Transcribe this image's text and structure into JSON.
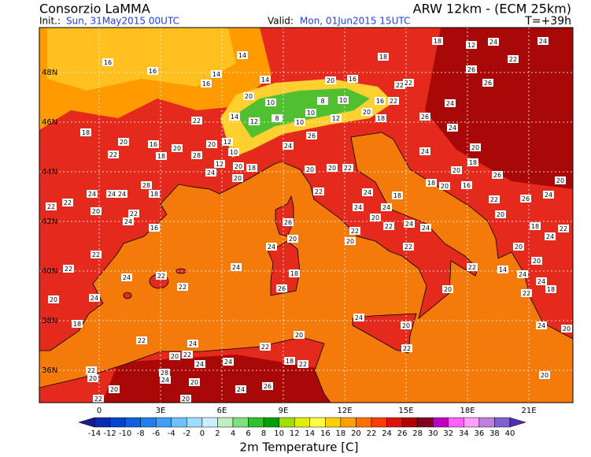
{
  "header": {
    "title": "Consorzio LaMMA",
    "model": "ARW 12km - (ECM 25km)",
    "init_label": "Init.:",
    "init": "Sun, 31May2015 00UTC",
    "valid_label": "Valid:",
    "valid": "Mon, 01Jun2015 15UTC",
    "lead": "T=+39h"
  },
  "map": {
    "lat_ticks": [
      {
        "value": 48,
        "label": "48N"
      },
      {
        "value": 46,
        "label": "46N"
      },
      {
        "value": 44,
        "label": "44N"
      },
      {
        "value": 42,
        "label": "42N"
      },
      {
        "value": 40,
        "label": "40N"
      },
      {
        "value": 38,
        "label": "38N"
      },
      {
        "value": 36,
        "label": "36N"
      }
    ],
    "lon_ticks": [
      0,
      {
        "value": 3,
        "label": "3E"
      },
      {
        "value": 6,
        "label": "6E"
      },
      {
        "value": 9,
        "label": "9E"
      },
      {
        "value": 12,
        "label": "12E"
      },
      {
        "value": 15,
        "label": "15E"
      },
      {
        "value": 18,
        "label": "18E"
      },
      {
        "value": 21,
        "label": "21E"
      }
    ],
    "stations": [
      16,
      16,
      14,
      14,
      16,
      14,
      20,
      10,
      14,
      12,
      8,
      10,
      10,
      8,
      10,
      20,
      16,
      22,
      18,
      12,
      26,
      24,
      22,
      20,
      12,
      10,
      12,
      20,
      18,
      20,
      16,
      20,
      18,
      22,
      18,
      28,
      24,
      20,
      20,
      20,
      22,
      22,
      24,
      20,
      24,
      24,
      18,
      22,
      18,
      16,
      20,
      22,
      18,
      12,
      24,
      22,
      24,
      26,
      26,
      24,
      26,
      24,
      20,
      24,
      18,
      20,
      18,
      26,
      20,
      16,
      22,
      26,
      24,
      20,
      18,
      20,
      20,
      20,
      14,
      24,
      24,
      22,
      18,
      24,
      22,
      20,
      24,
      20,
      22,
      20,
      22,
      22,
      24,
      24,
      22,
      20,
      20,
      26,
      24,
      18,
      26,
      24,
      22,
      22,
      24,
      22,
      22,
      24,
      20,
      18,
      24,
      20,
      22,
      20,
      22,
      24,
      22,
      20,
      28,
      24,
      24,
      24,
      22,
      20,
      20,
      22,
      20,
      26,
      24,
      22,
      18,
      20,
      22,
      22,
      24,
      24,
      24,
      22,
      28,
      18,
      24,
      16,
      20,
      22
    ]
  },
  "colorbar": {
    "title": "2m Temperature [C]",
    "ticks": [
      -14,
      -12,
      -10,
      -8,
      -6,
      -4,
      -2,
      0,
      2,
      4,
      6,
      8,
      10,
      12,
      14,
      16,
      18,
      20,
      22,
      24,
      26,
      28,
      30,
      32,
      34,
      36,
      38,
      40
    ],
    "colors": [
      "#1a1a8c",
      "#0a2ab0",
      "#0046d0",
      "#1060e0",
      "#2080f0",
      "#40a0f8",
      "#70c0ff",
      "#a0dcff",
      "#c8f0ff",
      "#c0f0c0",
      "#80e080",
      "#30c030",
      "#00a000",
      "#a0e000",
      "#e0f000",
      "#ffff40",
      "#ffd000",
      "#ffa000",
      "#ff7000",
      "#ff3c00",
      "#e01010",
      "#b00000",
      "#800020",
      "#c000c0",
      "#ff60ff",
      "#ffa0ff",
      "#c080e0",
      "#8060d0",
      "#5030b0"
    ]
  }
}
